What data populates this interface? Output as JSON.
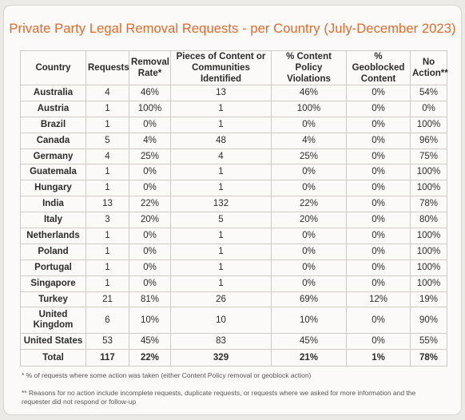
{
  "title": "Private Party Legal Removal Requests - per Country (July-December 2023)",
  "headers": {
    "country": "Country",
    "requests": "Requests",
    "removal_rate_1": "Removal",
    "removal_rate_2": "Rate*",
    "pieces_1": "Pieces of Content or",
    "pieces_2": "Communities Identified",
    "violations_1": "% Content Policy",
    "violations_2": "Violations",
    "geoblocked_1": "% Geoblocked",
    "geoblocked_2": "Content",
    "no_action_1": "No",
    "no_action_2": "Action**"
  },
  "rows": [
    {
      "country": "Australia",
      "requests": "4",
      "removal_rate": "46%",
      "pieces": "13",
      "violations": "46%",
      "geoblocked": "0%",
      "no_action": "54%"
    },
    {
      "country": "Austria",
      "requests": "1",
      "removal_rate": "100%",
      "pieces": "1",
      "violations": "100%",
      "geoblocked": "0%",
      "no_action": "0%"
    },
    {
      "country": "Brazil",
      "requests": "1",
      "removal_rate": "0%",
      "pieces": "1",
      "violations": "0%",
      "geoblocked": "0%",
      "no_action": "100%"
    },
    {
      "country": "Canada",
      "requests": "5",
      "removal_rate": "4%",
      "pieces": "48",
      "violations": "4%",
      "geoblocked": "0%",
      "no_action": "96%"
    },
    {
      "country": "Germany",
      "requests": "4",
      "removal_rate": "25%",
      "pieces": "4",
      "violations": "25%",
      "geoblocked": "0%",
      "no_action": "75%"
    },
    {
      "country": "Guatemala",
      "requests": "1",
      "removal_rate": "0%",
      "pieces": "1",
      "violations": "0%",
      "geoblocked": "0%",
      "no_action": "100%"
    },
    {
      "country": "Hungary",
      "requests": "1",
      "removal_rate": "0%",
      "pieces": "1",
      "violations": "0%",
      "geoblocked": "0%",
      "no_action": "100%"
    },
    {
      "country": "India",
      "requests": "13",
      "removal_rate": "22%",
      "pieces": "132",
      "violations": "22%",
      "geoblocked": "0%",
      "no_action": "78%"
    },
    {
      "country": "Italy",
      "requests": "3",
      "removal_rate": "20%",
      "pieces": "5",
      "violations": "20%",
      "geoblocked": "0%",
      "no_action": "80%"
    },
    {
      "country": "Netherlands",
      "requests": "1",
      "removal_rate": "0%",
      "pieces": "1",
      "violations": "0%",
      "geoblocked": "0%",
      "no_action": "100%"
    },
    {
      "country": "Poland",
      "requests": "1",
      "removal_rate": "0%",
      "pieces": "1",
      "violations": "0%",
      "geoblocked": "0%",
      "no_action": "100%"
    },
    {
      "country": "Portugal",
      "requests": "1",
      "removal_rate": "0%",
      "pieces": "1",
      "violations": "0%",
      "geoblocked": "0%",
      "no_action": "100%"
    },
    {
      "country": "Singapore",
      "requests": "1",
      "removal_rate": "0%",
      "pieces": "1",
      "violations": "0%",
      "geoblocked": "0%",
      "no_action": "100%"
    },
    {
      "country": "Turkey",
      "requests": "21",
      "removal_rate": "81%",
      "pieces": "26",
      "violations": "69%",
      "geoblocked": "12%",
      "no_action": "19%"
    },
    {
      "country_1": "United",
      "country_2": "Kingdom",
      "requests": "6",
      "removal_rate": "10%",
      "pieces": "10",
      "violations": "10%",
      "geoblocked": "0%",
      "no_action": "90%"
    },
    {
      "country": "United States",
      "requests": "53",
      "removal_rate": "45%",
      "pieces": "83",
      "violations": "45%",
      "geoblocked": "0%",
      "no_action": "55%"
    }
  ],
  "total": {
    "country": "Total",
    "requests": "117",
    "removal_rate": "22%",
    "pieces": "329",
    "violations": "21%",
    "geoblocked": "1%",
    "no_action": "78%"
  },
  "footnotes": {
    "note1": "* % of requests where some action was taken (either Content Policy removal or geoblock action)",
    "note2": "** Reasons for no action include incomplete requests, duplicate requests, or requests where we asked for more information and the requester did not respond or follow-up"
  },
  "colors": {
    "title": "#e06a2b",
    "border": "#cfcac3",
    "card": "#fbfaf8"
  }
}
